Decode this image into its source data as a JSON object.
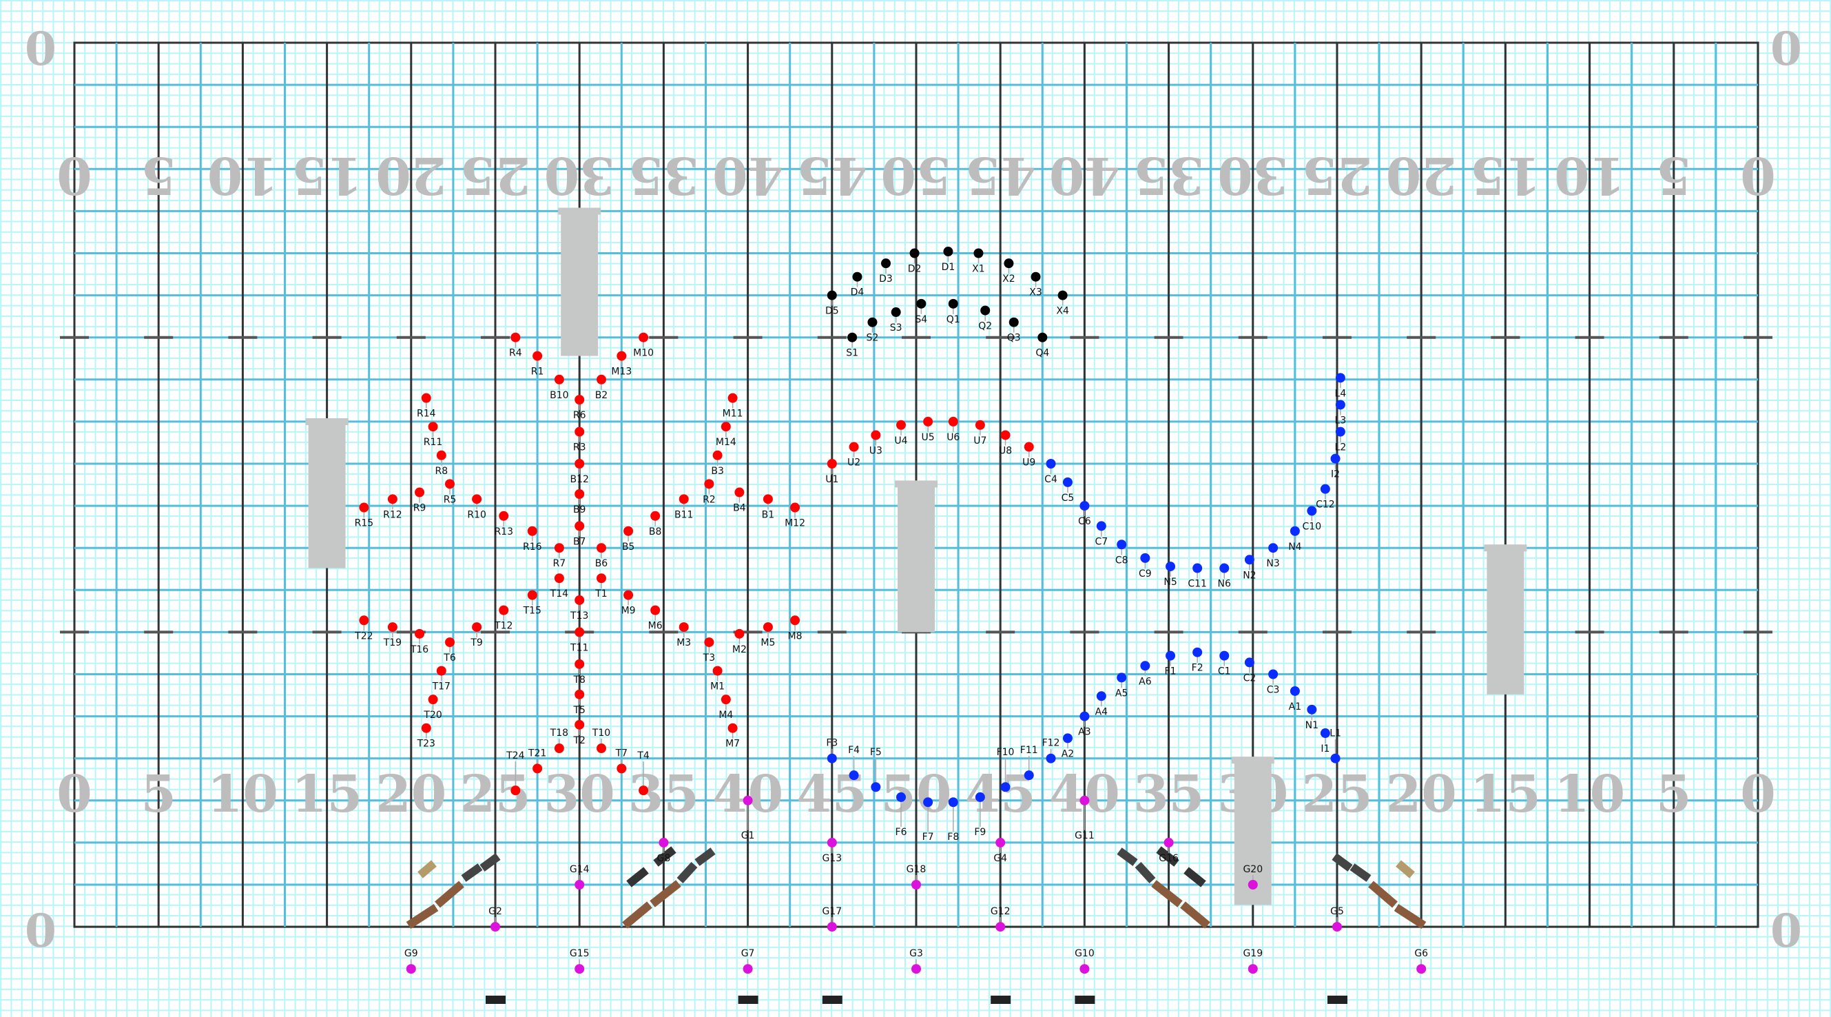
{
  "chart_data": {
    "type": "scatter",
    "field": {
      "x_unit": "yards",
      "y_unit": "yards",
      "xlim": [
        0,
        100
      ],
      "ylim": [
        0,
        52.5
      ],
      "grid": true,
      "hash_rows": [
        17.5,
        35
      ]
    },
    "yard_numbers_top": [
      "0",
      "5",
      "10",
      "15",
      "20",
      "25",
      "30",
      "35",
      "40",
      "45",
      "50",
      "45",
      "40",
      "35",
      "30",
      "25",
      "20",
      "15",
      "10",
      "5",
      "0"
    ],
    "yard_numbers_bottom": [
      "0",
      "5",
      "10",
      "15",
      "20",
      "25",
      "30",
      "35",
      "40",
      "45",
      "50",
      "45",
      "40",
      "35",
      "30",
      "25",
      "20",
      "15",
      "10",
      "5",
      "0"
    ],
    "corner_labels": [
      "0",
      "0",
      "0",
      "0"
    ],
    "series": [
      {
        "color": "#ff0000",
        "points": [
          [
            "R4",
            26.2,
            17.5
          ],
          [
            "R1",
            27.5,
            18.6
          ],
          [
            "B10",
            28.8,
            20.0
          ],
          [
            "B2",
            31.3,
            20.0
          ],
          [
            "M13",
            32.5,
            18.6
          ],
          [
            "M10",
            33.8,
            17.5
          ],
          [
            "R6",
            30.0,
            21.2
          ],
          [
            "R14",
            20.9,
            21.1
          ],
          [
            "R11",
            21.3,
            22.8
          ],
          [
            "R8",
            21.8,
            24.5
          ],
          [
            "R5",
            22.3,
            26.2
          ],
          [
            "R9",
            20.5,
            26.7
          ],
          [
            "R12",
            18.9,
            27.1
          ],
          [
            "R15",
            17.2,
            27.6
          ],
          [
            "R10",
            23.9,
            27.1
          ],
          [
            "R13",
            25.5,
            28.1
          ],
          [
            "R16",
            27.2,
            29.0
          ],
          [
            "R3",
            30.0,
            23.1
          ],
          [
            "B12",
            30.0,
            25.0
          ],
          [
            "B9",
            30.0,
            26.8
          ],
          [
            "B7",
            30.0,
            28.7
          ],
          [
            "R7",
            28.8,
            30.0
          ],
          [
            "B6",
            31.3,
            30.0
          ],
          [
            "B5",
            32.9,
            29.0
          ],
          [
            "B8",
            34.5,
            28.1
          ],
          [
            "B11",
            36.2,
            27.1
          ],
          [
            "R2",
            37.7,
            26.2
          ],
          [
            "B3",
            38.2,
            24.5
          ],
          [
            "M14",
            38.7,
            22.8
          ],
          [
            "M11",
            39.1,
            21.1
          ],
          [
            "B4",
            39.5,
            26.7
          ],
          [
            "B1",
            41.2,
            27.1
          ],
          [
            "M12",
            42.8,
            27.6
          ],
          [
            "T14",
            28.8,
            31.8
          ],
          [
            "T1",
            31.3,
            31.8
          ],
          [
            "T15",
            27.2,
            32.8
          ],
          [
            "M9",
            32.9,
            32.8
          ],
          [
            "T13",
            30.0,
            33.1
          ],
          [
            "T12",
            25.5,
            33.7
          ],
          [
            "M6",
            34.5,
            33.7
          ],
          [
            "T22",
            17.2,
            34.3
          ],
          [
            "T19",
            18.9,
            34.7
          ],
          [
            "T16",
            20.5,
            35.1
          ],
          [
            "T9",
            23.9,
            34.7
          ],
          [
            "T11",
            30.0,
            35.0
          ],
          [
            "M3",
            36.2,
            34.7
          ],
          [
            "M2",
            39.5,
            35.1
          ],
          [
            "M5",
            41.2,
            34.7
          ],
          [
            "M8",
            42.8,
            34.3
          ],
          [
            "T6",
            22.3,
            35.6
          ],
          [
            "T3",
            37.7,
            35.6
          ],
          [
            "T17",
            21.8,
            37.3
          ],
          [
            "M1",
            38.2,
            37.3
          ],
          [
            "T8",
            30.0,
            36.9
          ],
          [
            "T20",
            21.3,
            39.0
          ],
          [
            "M4",
            38.7,
            39.0
          ],
          [
            "T5",
            30.0,
            38.7
          ],
          [
            "T23",
            20.9,
            40.7
          ],
          [
            "M7",
            39.1,
            40.7
          ],
          [
            "T2",
            30.0,
            40.5
          ],
          [
            "T18",
            28.8,
            41.9
          ],
          [
            "T10",
            31.3,
            41.9
          ],
          [
            "T21",
            27.5,
            43.1
          ],
          [
            "T7",
            32.5,
            43.1
          ],
          [
            "T24",
            26.2,
            44.4
          ],
          [
            "T4",
            33.8,
            44.4
          ],
          [
            "U1",
            45.0,
            25.0
          ],
          [
            "U2",
            46.3,
            24.0
          ],
          [
            "U3",
            47.6,
            23.3
          ],
          [
            "U4",
            49.1,
            22.7
          ],
          [
            "U5",
            50.7,
            22.5
          ],
          [
            "U6",
            52.2,
            22.5
          ],
          [
            "U7",
            53.8,
            22.7
          ],
          [
            "U8",
            55.3,
            23.3
          ],
          [
            "U9",
            56.7,
            24.0
          ]
        ]
      },
      {
        "color": "#000000",
        "points": [
          [
            "D5",
            45.0,
            15.0
          ],
          [
            "D4",
            46.5,
            13.9
          ],
          [
            "D3",
            48.2,
            13.1
          ],
          [
            "D2",
            49.9,
            12.5
          ],
          [
            "D1",
            51.9,
            12.4
          ],
          [
            "X1",
            53.7,
            12.5
          ],
          [
            "X2",
            55.5,
            13.1
          ],
          [
            "X3",
            57.1,
            13.9
          ],
          [
            "X4",
            58.7,
            15.0
          ],
          [
            "S1",
            46.2,
            17.5
          ],
          [
            "S2",
            47.4,
            16.6
          ],
          [
            "S3",
            48.8,
            16.0
          ],
          [
            "S4",
            50.3,
            15.5
          ],
          [
            "Q1",
            52.2,
            15.5
          ],
          [
            "Q2",
            54.1,
            15.9
          ],
          [
            "Q3",
            55.8,
            16.6
          ],
          [
            "Q4",
            57.5,
            17.5
          ]
        ]
      },
      {
        "color": "#0a2cff",
        "points": [
          [
            "C4",
            58.0,
            25.0
          ],
          [
            "C5",
            59.0,
            26.1
          ],
          [
            "C6",
            60.0,
            27.5
          ],
          [
            "C7",
            61.0,
            28.7
          ],
          [
            "C8",
            62.2,
            29.8
          ],
          [
            "C9",
            63.6,
            30.6
          ],
          [
            "N5",
            65.1,
            31.1
          ],
          [
            "C11",
            66.7,
            31.2
          ],
          [
            "N6",
            68.3,
            31.2
          ],
          [
            "N2",
            69.8,
            30.7
          ],
          [
            "N3",
            71.2,
            30.0
          ],
          [
            "N4",
            72.5,
            29.0
          ],
          [
            "C10",
            73.5,
            27.8
          ],
          [
            "C12",
            74.3,
            26.5
          ],
          [
            "I2",
            74.9,
            24.7
          ],
          [
            "L2",
            75.2,
            23.1
          ],
          [
            "L3",
            75.2,
            21.5
          ],
          [
            "L4",
            75.2,
            19.9
          ],
          [
            "F3",
            45.0,
            42.5
          ],
          [
            "F4",
            46.3,
            43.5
          ],
          [
            "F5",
            47.6,
            44.2
          ],
          [
            "F6",
            49.1,
            44.8
          ],
          [
            "F7",
            50.7,
            45.1
          ],
          [
            "F8",
            52.2,
            45.1
          ],
          [
            "F9",
            53.8,
            44.8
          ],
          [
            "F10",
            55.3,
            44.2
          ],
          [
            "F11",
            56.7,
            43.5
          ],
          [
            "F12",
            58.0,
            42.5
          ],
          [
            "A2",
            59.0,
            41.3
          ],
          [
            "A3",
            60.0,
            40.0
          ],
          [
            "A4",
            61.0,
            38.8
          ],
          [
            "A5",
            62.2,
            37.7
          ],
          [
            "A6",
            63.6,
            37.0
          ],
          [
            "F1",
            65.1,
            36.4
          ],
          [
            "F2",
            66.7,
            36.2
          ],
          [
            "C1",
            68.3,
            36.4
          ],
          [
            "C2",
            69.8,
            36.8
          ],
          [
            "C3",
            71.2,
            37.5
          ],
          [
            "A1",
            72.5,
            38.5
          ],
          [
            "N1",
            73.5,
            39.6
          ],
          [
            "I1",
            74.3,
            41.0
          ],
          [
            "L1",
            74.9,
            42.5
          ]
        ]
      },
      {
        "color": "#dd11dd",
        "points": [
          [
            "G1",
            40,
            45.0
          ],
          [
            "G8",
            35,
            47.5
          ],
          [
            "G13",
            45,
            47.5
          ],
          [
            "G4",
            55,
            47.5
          ],
          [
            "G11",
            60,
            45.0
          ],
          [
            "G16",
            65,
            47.5
          ],
          [
            "G14",
            30,
            50.0
          ],
          [
            "G18",
            50,
            50.0
          ],
          [
            "G20",
            70,
            50.0
          ],
          [
            "G2",
            25,
            52.5
          ],
          [
            "G17",
            45,
            52.5
          ],
          [
            "G12",
            55,
            52.5
          ],
          [
            "G5",
            75,
            52.5
          ],
          [
            "G9",
            20,
            55.0
          ],
          [
            "G15",
            30,
            55.0
          ],
          [
            "G7",
            40,
            55.0
          ],
          [
            "G3",
            50,
            55.0
          ],
          [
            "G10",
            60,
            55.0
          ],
          [
            "G19",
            70,
            55.0
          ],
          [
            "G6",
            80,
            55.0
          ]
        ]
      }
    ]
  },
  "colors": {
    "fine_grid": "#b4f6f9",
    "major_grid": "#55bedb",
    "yard_line": "#333333",
    "prop_gray": "#c6c8c8",
    "yard_number": "#bdbdbd"
  }
}
